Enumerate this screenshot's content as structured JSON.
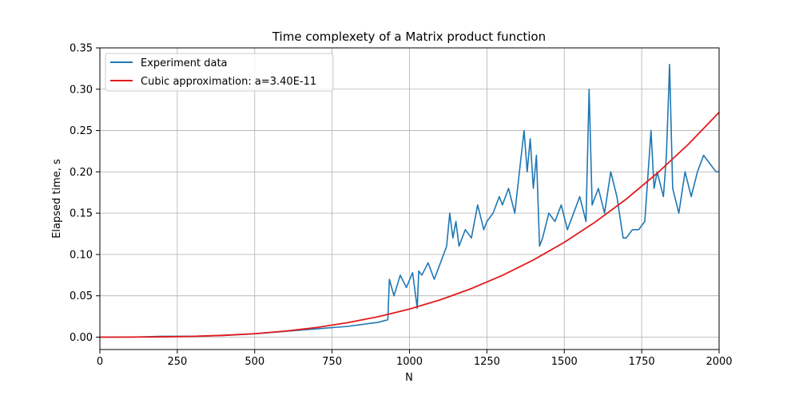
{
  "chart_data": {
    "type": "line",
    "title": "Time complexety of a Matrix product function",
    "xlabel": "N",
    "ylabel": "Elapsed time, s",
    "xlim": [
      0,
      2000
    ],
    "ylim": [
      -0.015,
      0.35
    ],
    "xticks": [
      0,
      250,
      500,
      750,
      1000,
      1250,
      1500,
      1750,
      2000
    ],
    "xtick_labels": [
      "0",
      "250",
      "500",
      "750",
      "1000",
      "1250",
      "1500",
      "1750",
      "2000"
    ],
    "yticks": [
      0.0,
      0.05,
      0.1,
      0.15,
      0.2,
      0.25,
      0.3,
      0.35
    ],
    "ytick_labels": [
      "0.00",
      "0.05",
      "0.10",
      "0.15",
      "0.20",
      "0.25",
      "0.30",
      "0.35"
    ],
    "grid": true,
    "legend_position": "top-left",
    "series": [
      {
        "name": "Experiment data",
        "color": "#1f77b4",
        "x": [
          0,
          100,
          200,
          300,
          400,
          500,
          600,
          700,
          800,
          900,
          930,
          935,
          950,
          970,
          990,
          1010,
          1025,
          1030,
          1040,
          1060,
          1080,
          1100,
          1120,
          1130,
          1140,
          1150,
          1160,
          1180,
          1200,
          1220,
          1240,
          1250,
          1270,
          1290,
          1300,
          1320,
          1340,
          1355,
          1370,
          1380,
          1390,
          1400,
          1410,
          1420,
          1430,
          1450,
          1470,
          1490,
          1510,
          1530,
          1550,
          1570,
          1580,
          1590,
          1610,
          1630,
          1650,
          1670,
          1690,
          1700,
          1720,
          1740,
          1760,
          1780,
          1790,
          1800,
          1820,
          1830,
          1840,
          1850,
          1870,
          1890,
          1910,
          1930,
          1950,
          1970,
          1990,
          2000
        ],
        "y": [
          0.0,
          0.0,
          0.001,
          0.001,
          0.002,
          0.004,
          0.007,
          0.01,
          0.013,
          0.018,
          0.021,
          0.07,
          0.05,
          0.075,
          0.06,
          0.078,
          0.035,
          0.08,
          0.075,
          0.09,
          0.07,
          0.09,
          0.11,
          0.15,
          0.12,
          0.14,
          0.11,
          0.13,
          0.12,
          0.16,
          0.13,
          0.14,
          0.15,
          0.17,
          0.16,
          0.18,
          0.15,
          0.2,
          0.25,
          0.2,
          0.24,
          0.18,
          0.22,
          0.11,
          0.12,
          0.15,
          0.14,
          0.16,
          0.13,
          0.15,
          0.17,
          0.14,
          0.3,
          0.16,
          0.18,
          0.15,
          0.2,
          0.17,
          0.12,
          0.12,
          0.13,
          0.13,
          0.14,
          0.25,
          0.18,
          0.2,
          0.17,
          0.22,
          0.33,
          0.18,
          0.15,
          0.2,
          0.17,
          0.2,
          0.22,
          0.21,
          0.2,
          0.2
        ]
      },
      {
        "name": "Cubic approximation: a=3.40E-11",
        "color": "#e41a1c",
        "x": [
          0,
          100,
          200,
          300,
          400,
          500,
          600,
          700,
          800,
          900,
          1000,
          1100,
          1200,
          1300,
          1400,
          1500,
          1600,
          1700,
          1800,
          1900,
          2000
        ],
        "y": [
          0.0,
          3.4e-05,
          0.000272,
          0.000918,
          0.002176,
          0.00425,
          0.007344,
          0.011662,
          0.017408,
          0.024786,
          0.034,
          0.045254,
          0.058752,
          0.074698,
          0.093296,
          0.11475,
          0.139264,
          0.167042,
          0.198288,
          0.233206,
          0.272
        ]
      }
    ]
  }
}
